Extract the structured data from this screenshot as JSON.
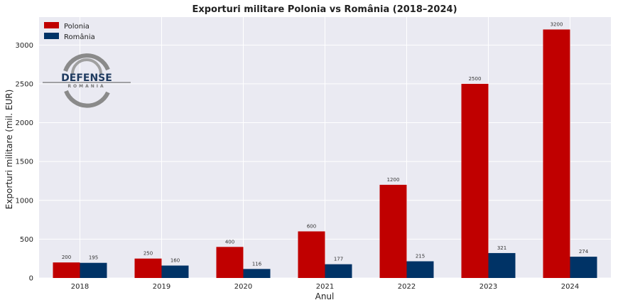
{
  "chart_data": {
    "type": "bar",
    "title": "Exporturi militare Polonia vs România (2018–2024)",
    "xlabel": "Anul",
    "ylabel": "Exporturi militare (mil. EUR)",
    "categories": [
      "2018",
      "2019",
      "2020",
      "2021",
      "2022",
      "2023",
      "2024"
    ],
    "series": [
      {
        "name": "Polonia",
        "color": "#c00000",
        "values": [
          200,
          250,
          400,
          600,
          1200,
          2500,
          3200
        ]
      },
      {
        "name": "România",
        "color": "#003366",
        "values": [
          195,
          160,
          116,
          177,
          215,
          321,
          274
        ]
      }
    ],
    "ylim": [
      0,
      3360
    ],
    "yticks": [
      0,
      500,
      1000,
      1500,
      2000,
      2500,
      3000
    ],
    "grid": true,
    "legend": "top-left",
    "background": "#eaeaf2"
  },
  "logo": {
    "main": "DEFENSE",
    "sub": "ROMANIA"
  }
}
